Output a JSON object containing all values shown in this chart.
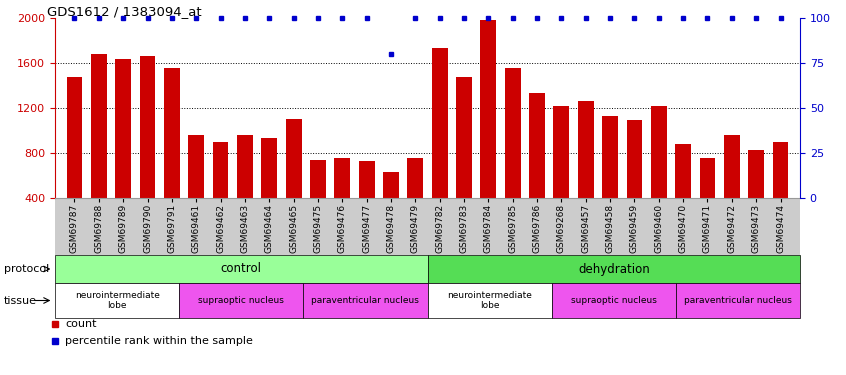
{
  "title": "GDS1612 / 1383094_at",
  "samples": [
    "GSM69787",
    "GSM69788",
    "GSM69789",
    "GSM69790",
    "GSM69791",
    "GSM69461",
    "GSM69462",
    "GSM69463",
    "GSM69464",
    "GSM69465",
    "GSM69475",
    "GSM69476",
    "GSM69477",
    "GSM69478",
    "GSM69479",
    "GSM69782",
    "GSM69783",
    "GSM69784",
    "GSM69785",
    "GSM69786",
    "GSM69268",
    "GSM69457",
    "GSM69458",
    "GSM69459",
    "GSM69460",
    "GSM69470",
    "GSM69471",
    "GSM69472",
    "GSM69473",
    "GSM69474"
  ],
  "counts": [
    1480,
    1680,
    1640,
    1660,
    1560,
    960,
    900,
    960,
    930,
    1100,
    740,
    760,
    730,
    630,
    760,
    1730,
    1480,
    1980,
    1560,
    1330,
    1220,
    1260,
    1130,
    1090,
    1220,
    880,
    760,
    960,
    830,
    900
  ],
  "percentile_ranks": [
    100,
    100,
    100,
    100,
    100,
    100,
    100,
    100,
    100,
    100,
    100,
    100,
    100,
    80,
    100,
    100,
    100,
    100,
    100,
    100,
    100,
    100,
    100,
    100,
    100,
    100,
    100,
    100,
    100,
    100
  ],
  "ylim_left": [
    400,
    2000
  ],
  "ylim_right": [
    0,
    100
  ],
  "yticks_left": [
    400,
    800,
    1200,
    1600,
    2000
  ],
  "yticks_right": [
    0,
    25,
    50,
    75,
    100
  ],
  "bar_color": "#cc0000",
  "dot_color": "#0000cc",
  "protocol_groups": [
    {
      "label": "control",
      "start": 0,
      "end": 14,
      "color": "#99ff99"
    },
    {
      "label": "dehydration",
      "start": 15,
      "end": 29,
      "color": "#55dd55"
    }
  ],
  "tissue_groups": [
    {
      "label": "neurointermediate\nlobe",
      "start": 0,
      "end": 4,
      "color": "#ffffff"
    },
    {
      "label": "supraoptic nucleus",
      "start": 5,
      "end": 9,
      "color": "#ee55ee"
    },
    {
      "label": "paraventricular nucleus",
      "start": 10,
      "end": 14,
      "color": "#ee55ee"
    },
    {
      "label": "neurointermediate\nlobe",
      "start": 15,
      "end": 19,
      "color": "#ffffff"
    },
    {
      "label": "supraoptic nucleus",
      "start": 20,
      "end": 24,
      "color": "#ee55ee"
    },
    {
      "label": "paraventricular nucleus",
      "start": 25,
      "end": 29,
      "color": "#ee55ee"
    }
  ],
  "protocol_label": "protocol",
  "tissue_label": "tissue",
  "legend_count_label": "count",
  "legend_pct_label": "percentile rank within the sample",
  "tick_color_left": "#cc0000",
  "tick_color_right": "#0000cc",
  "dotted_grid_values": [
    800,
    1200,
    1600
  ],
  "xtick_bg_color": "#cccccc"
}
